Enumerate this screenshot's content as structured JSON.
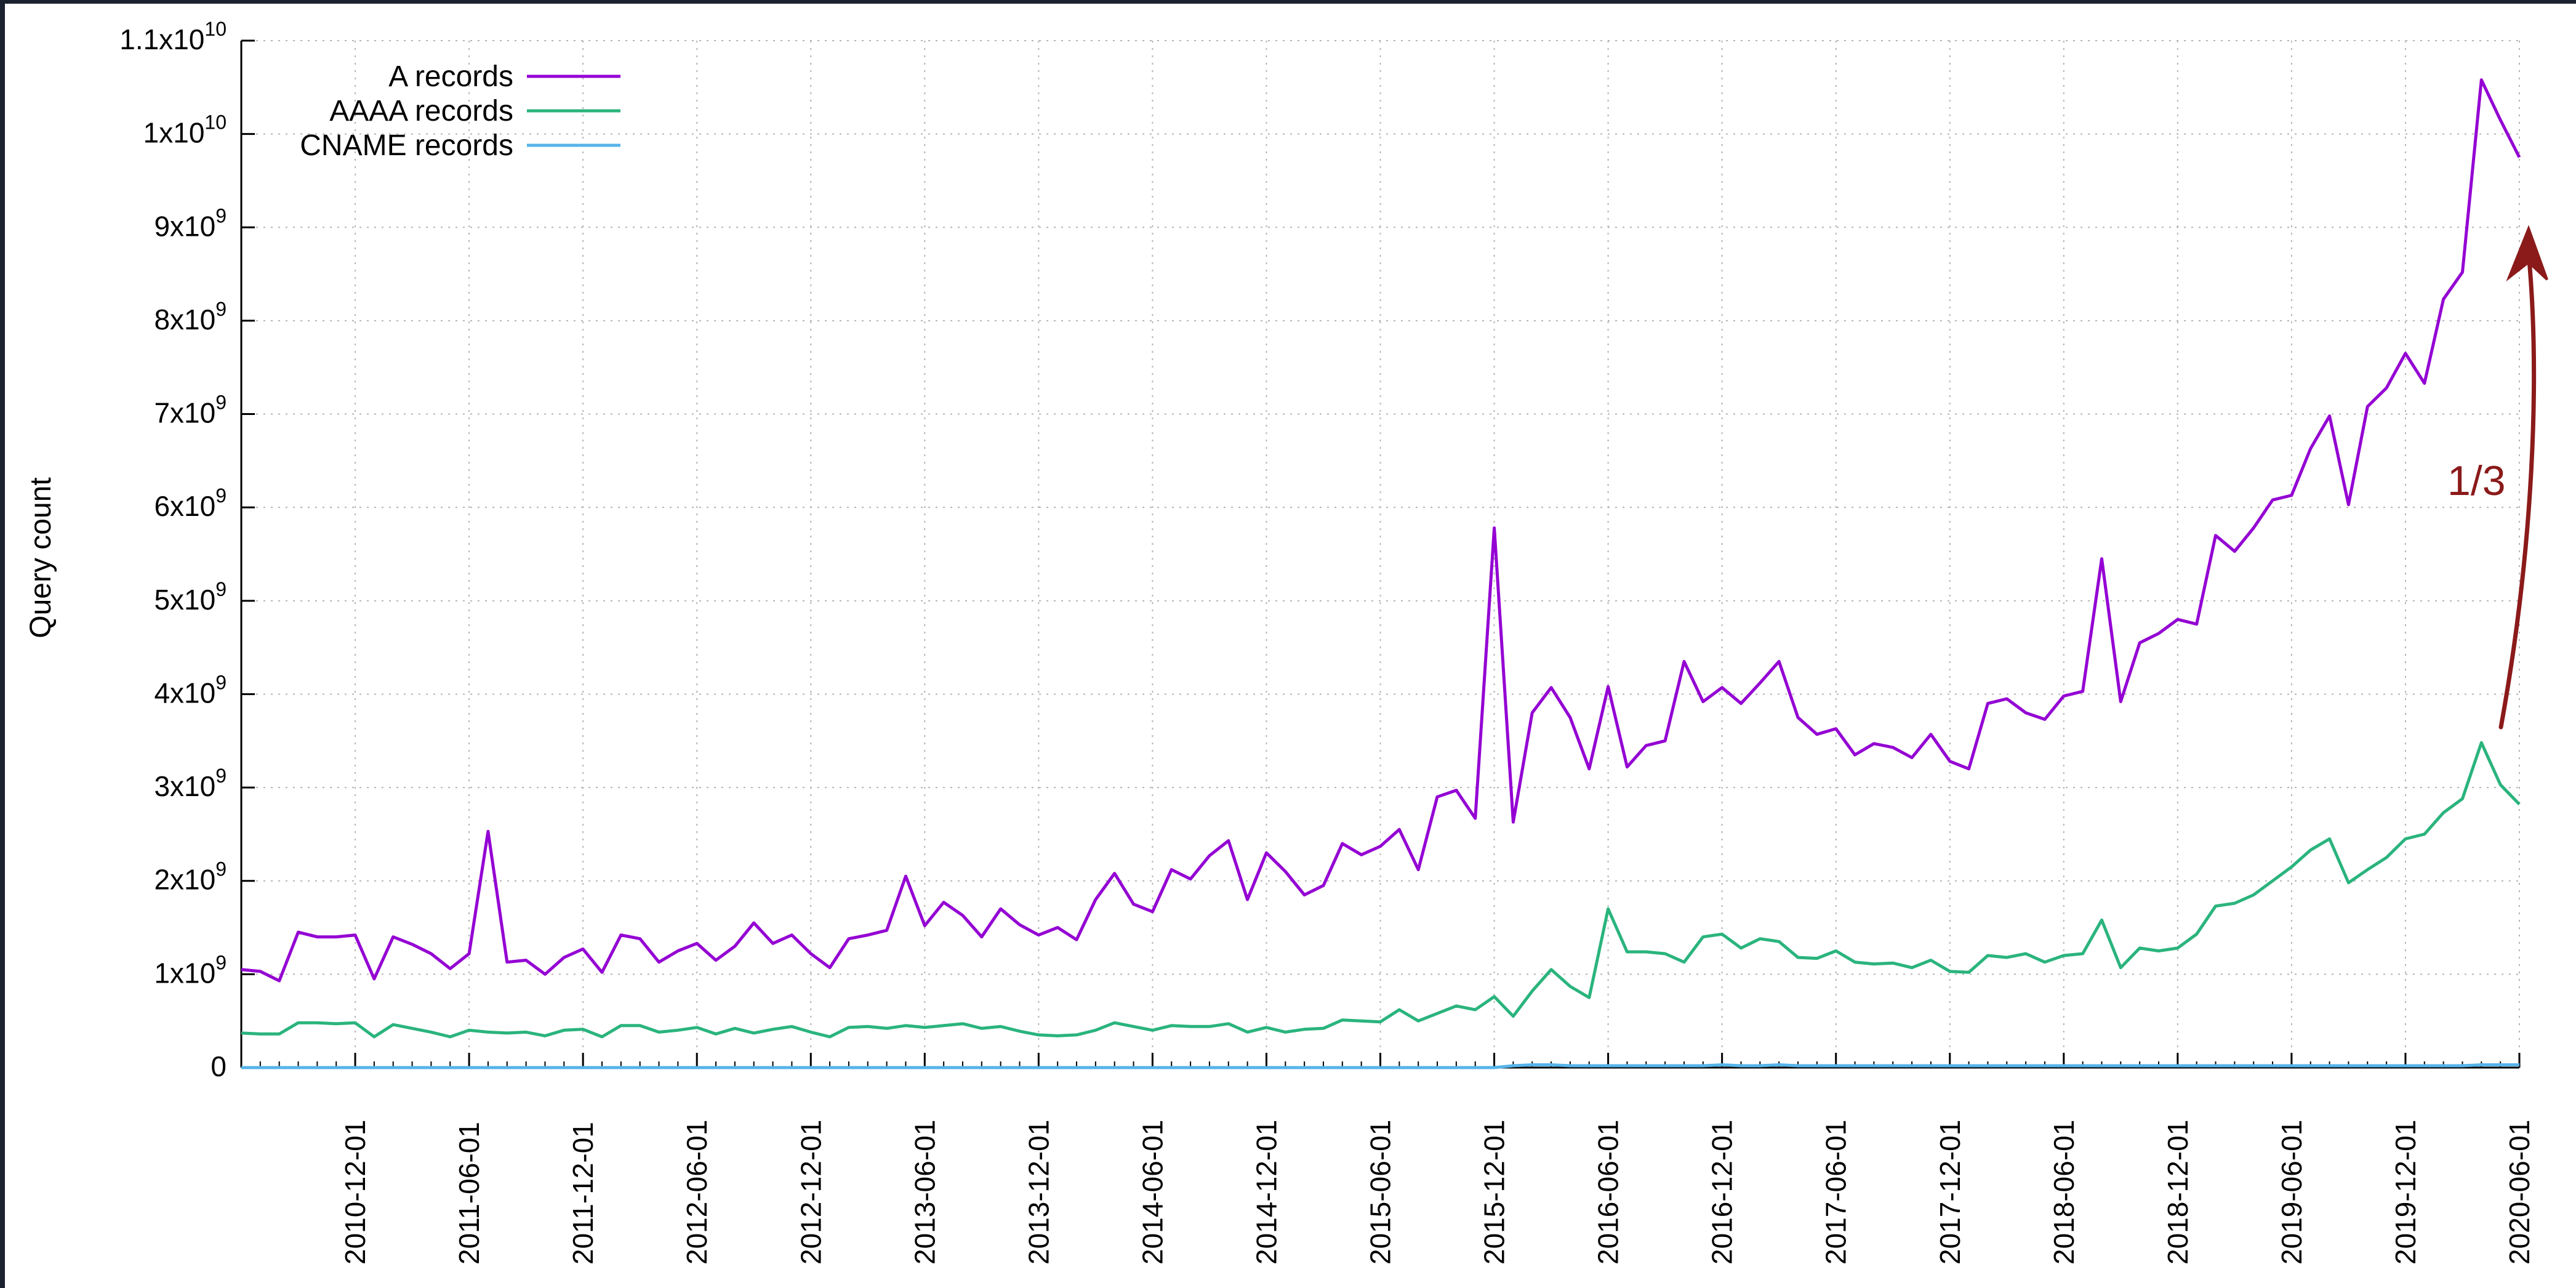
{
  "chart_data": {
    "type": "line",
    "title": "",
    "xlabel": "",
    "ylabel": "Query count",
    "ylim": [
      0,
      11000000000
    ],
    "xlim": [
      "2010-06-01",
      "2020-06-01"
    ],
    "grid": true,
    "legend_position": "top-left",
    "y_ticks": [
      {
        "value": 0,
        "mantissa": "0",
        "exp": ""
      },
      {
        "value": 1000000000,
        "mantissa": "1x10",
        "exp": "9"
      },
      {
        "value": 2000000000,
        "mantissa": "2x10",
        "exp": "9"
      },
      {
        "value": 3000000000,
        "mantissa": "3x10",
        "exp": "9"
      },
      {
        "value": 4000000000,
        "mantissa": "4x10",
        "exp": "9"
      },
      {
        "value": 5000000000,
        "mantissa": "5x10",
        "exp": "9"
      },
      {
        "value": 6000000000,
        "mantissa": "6x10",
        "exp": "9"
      },
      {
        "value": 7000000000,
        "mantissa": "7x10",
        "exp": "9"
      },
      {
        "value": 8000000000,
        "mantissa": "8x10",
        "exp": "9"
      },
      {
        "value": 9000000000,
        "mantissa": "9x10",
        "exp": "9"
      },
      {
        "value": 10000000000,
        "mantissa": "1x10",
        "exp": "10"
      },
      {
        "value": 11000000000,
        "mantissa": "1.1x10",
        "exp": "10"
      }
    ],
    "x_ticks": [
      "2010-12-01",
      "2011-06-01",
      "2011-12-01",
      "2012-06-01",
      "2012-12-01",
      "2013-06-01",
      "2013-12-01",
      "2014-06-01",
      "2014-12-01",
      "2015-06-01",
      "2015-12-01",
      "2016-06-01",
      "2016-12-01",
      "2017-06-01",
      "2017-12-01",
      "2018-06-01",
      "2018-12-01",
      "2019-06-01",
      "2019-12-01",
      "2020-06-01"
    ],
    "series": [
      {
        "name": "A records",
        "color": "#9400d3",
        "start": "2010-06-01",
        "interval": "1 month",
        "values": [
          1050000000.0,
          1030000000.0,
          930000000.0,
          1450000000.0,
          1400000000.0,
          1400000000.0,
          1420000000.0,
          950000000.0,
          1400000000.0,
          1320000000.0,
          1220000000.0,
          1060000000.0,
          1220000000.0,
          2530000000.0,
          1130000000.0,
          1150000000.0,
          1000000000.0,
          1180000000.0,
          1270000000.0,
          1020000000.0,
          1420000000.0,
          1380000000.0,
          1130000000.0,
          1250000000.0,
          1330000000.0,
          1150000000.0,
          1300000000.0,
          1550000000.0,
          1330000000.0,
          1420000000.0,
          1220000000.0,
          1070000000.0,
          1380000000.0,
          1420000000.0,
          1470000000.0,
          2050000000.0,
          1520000000.0,
          1770000000.0,
          1630000000.0,
          1400000000.0,
          1700000000.0,
          1530000000.0,
          1420000000.0,
          1500000000.0,
          1370000000.0,
          1800000000.0,
          2080000000.0,
          1750000000.0,
          1670000000.0,
          2120000000.0,
          2020000000.0,
          2270000000.0,
          2430000000.0,
          1800000000.0,
          2300000000.0,
          2100000000.0,
          1850000000.0,
          1950000000.0,
          2400000000.0,
          2280000000.0,
          2370000000.0,
          2550000000.0,
          2120000000.0,
          2900000000.0,
          2970000000.0,
          2670000000.0,
          5780000000.0,
          2630000000.0,
          3800000000.0,
          4070000000.0,
          3750000000.0,
          3200000000.0,
          4080000000.0,
          3220000000.0,
          3450000000.0,
          3500000000.0,
          4350000000.0,
          3920000000.0,
          4070000000.0,
          3900000000.0,
          4120000000.0,
          4350000000.0,
          3750000000.0,
          3570000000.0,
          3630000000.0,
          3350000000.0,
          3470000000.0,
          3430000000.0,
          3320000000.0,
          3570000000.0,
          3280000000.0,
          3200000000.0,
          3900000000.0,
          3950000000.0,
          3800000000.0,
          3730000000.0,
          3980000000.0,
          4030000000.0,
          5450000000.0,
          3920000000.0,
          4550000000.0,
          4650000000.0,
          4800000000.0,
          4750000000.0,
          5700000000.0,
          5530000000.0,
          5780000000.0,
          6080000000.0,
          6130000000.0,
          6630000000.0,
          6980000000.0,
          6030000000.0,
          7080000000.0,
          7280000000.0,
          7650000000.0,
          7330000000.0,
          8230000000.0,
          8520000000.0,
          10580000000.0,
          10150000000.0,
          9750000000.0
        ]
      },
      {
        "name": "AAAA records",
        "color": "#2ab47d",
        "start": "2010-06-01",
        "interval": "1 month",
        "values": [
          370000000.0,
          360000000.0,
          360000000.0,
          480000000.0,
          480000000.0,
          470000000.0,
          480000000.0,
          330000000.0,
          460000000.0,
          420000000.0,
          380000000.0,
          330000000.0,
          400000000.0,
          380000000.0,
          370000000.0,
          380000000.0,
          340000000.0,
          400000000.0,
          410000000.0,
          330000000.0,
          450000000.0,
          450000000.0,
          380000000.0,
          400000000.0,
          430000000.0,
          360000000.0,
          420000000.0,
          370000000.0,
          410000000.0,
          440000000.0,
          380000000.0,
          330000000.0,
          430000000.0,
          440000000.0,
          420000000.0,
          450000000.0,
          430000000.0,
          450000000.0,
          470000000.0,
          420000000.0,
          440000000.0,
          390000000.0,
          350000000.0,
          340000000.0,
          350000000.0,
          400000000.0,
          480000000.0,
          440000000.0,
          400000000.0,
          450000000.0,
          440000000.0,
          440000000.0,
          470000000.0,
          380000000.0,
          430000000.0,
          380000000.0,
          410000000.0,
          420000000.0,
          510000000.0,
          500000000.0,
          490000000.0,
          620000000.0,
          500000000.0,
          580000000.0,
          660000000.0,
          620000000.0,
          760000000.0,
          550000000.0,
          820000000.0,
          1050000000.0,
          870000000.0,
          750000000.0,
          1700000000.0,
          1240000000.0,
          1240000000.0,
          1220000000.0,
          1130000000.0,
          1400000000.0,
          1430000000.0,
          1280000000.0,
          1380000000.0,
          1350000000.0,
          1180000000.0,
          1170000000.0,
          1250000000.0,
          1130000000.0,
          1110000000.0,
          1120000000.0,
          1070000000.0,
          1150000000.0,
          1030000000.0,
          1020000000.0,
          1200000000.0,
          1180000000.0,
          1220000000.0,
          1130000000.0,
          1200000000.0,
          1220000000.0,
          1580000000.0,
          1070000000.0,
          1280000000.0,
          1250000000.0,
          1280000000.0,
          1430000000.0,
          1730000000.0,
          1760000000.0,
          1850000000.0,
          2000000000.0,
          2150000000.0,
          2330000000.0,
          2450000000.0,
          1980000000.0,
          2120000000.0,
          2250000000.0,
          2450000000.0,
          2500000000.0,
          2730000000.0,
          2880000000.0,
          3480000000.0,
          3030000000.0,
          2820000000.0
        ]
      },
      {
        "name": "CNAME records",
        "color": "#56b4e9",
        "start": "2010-06-01",
        "interval": "1 month",
        "values": [
          0,
          0,
          0,
          0,
          0,
          0,
          0,
          0,
          0,
          0,
          0,
          0,
          0,
          0,
          0,
          0,
          0,
          0,
          0,
          0,
          0,
          0,
          0,
          0,
          0,
          0,
          0,
          0,
          0,
          0,
          0,
          0,
          0,
          0,
          0,
          0,
          0,
          0,
          0,
          0,
          0,
          0,
          0,
          0,
          0,
          0,
          0,
          0,
          0,
          0,
          0,
          0,
          0,
          0,
          0,
          0,
          0,
          0,
          0,
          0,
          0,
          0,
          0,
          0,
          0,
          0,
          0,
          20000000.0,
          30000000.0,
          30000000.0,
          20000000.0,
          20000000.0,
          20000000.0,
          20000000.0,
          20000000.0,
          20000000.0,
          20000000.0,
          20000000.0,
          30000000.0,
          20000000.0,
          20000000.0,
          30000000.0,
          20000000.0,
          20000000.0,
          20000000.0,
          20000000.0,
          20000000.0,
          20000000.0,
          20000000.0,
          20000000.0,
          20000000.0,
          20000000.0,
          20000000.0,
          20000000.0,
          20000000.0,
          20000000.0,
          20000000.0,
          20000000.0,
          20000000.0,
          20000000.0,
          20000000.0,
          20000000.0,
          20000000.0,
          20000000.0,
          20000000.0,
          20000000.0,
          20000000.0,
          20000000.0,
          20000000.0,
          20000000.0,
          20000000.0,
          20000000.0,
          20000000.0,
          20000000.0,
          20000000.0,
          20000000.0,
          20000000.0,
          20000000.0,
          30000000.0,
          30000000.0,
          30000000.0
        ]
      }
    ],
    "annotations": [
      {
        "text": "1/3",
        "color": "#8b1a1a",
        "arrow": "curved, from AAAA series end up toward A records peak"
      }
    ]
  }
}
